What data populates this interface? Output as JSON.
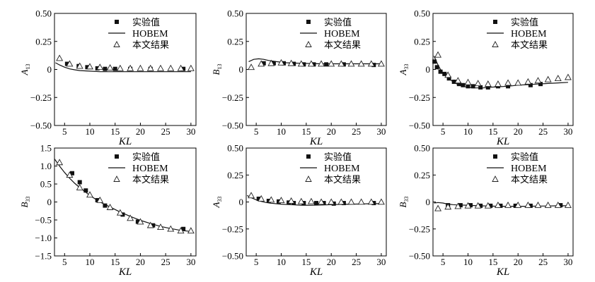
{
  "legend": {
    "experiment": "实验值",
    "hobem": "HOBEM",
    "present": "本文结果"
  },
  "chart_data": [
    {
      "type": "scatter",
      "ylabel": "A",
      "ylabel_sub": "13",
      "xlabel": "KL",
      "xlim": [
        3,
        31
      ],
      "ylim": [
        -0.5,
        0.5
      ],
      "xticks": [
        5,
        10,
        15,
        20,
        25,
        30
      ],
      "yticks": [
        -0.5,
        -0.25,
        0,
        0.25,
        0.5
      ],
      "yticklabels": [
        "−0.50",
        "−0.25",
        "0",
        "0.25",
        "0.50"
      ],
      "legend_position": "top-right",
      "series": [
        {
          "name": "实验值",
          "marker": "square",
          "x": [
            5.5,
            7.8,
            9.5,
            11.5,
            13,
            15,
            18,
            22,
            28.5
          ],
          "y": [
            0.05,
            0.03,
            0.02,
            0.01,
            0.005,
            0.005,
            0.005,
            0.005,
            0.005
          ]
        },
        {
          "name": "HOBEM",
          "marker": "line",
          "x": [
            3.2,
            4,
            5,
            6,
            7,
            8,
            10,
            12,
            15,
            20,
            25,
            30
          ],
          "y": [
            0.06,
            0.04,
            0.02,
            0.005,
            -0.003,
            -0.01,
            -0.015,
            -0.02,
            -0.02,
            -0.02,
            -0.02,
            -0.02
          ]
        },
        {
          "name": "本文结果",
          "marker": "triangle",
          "x": [
            4,
            6,
            8,
            10,
            12,
            14,
            16,
            18,
            20,
            22,
            24,
            26,
            28,
            30
          ],
          "y": [
            0.1,
            0.05,
            0.03,
            0.025,
            0.02,
            0.015,
            0.01,
            0.01,
            0.01,
            0.01,
            0.01,
            0.01,
            0.01,
            0.01
          ]
        }
      ]
    },
    {
      "type": "scatter",
      "ylabel": "B",
      "ylabel_sub": "13",
      "xlabel": "KL",
      "xlim": [
        3,
        31
      ],
      "ylim": [
        -0.5,
        0.5
      ],
      "xticks": [
        5,
        10,
        15,
        20,
        25,
        30
      ],
      "yticks": [
        -0.5,
        -0.25,
        0,
        0.25,
        0.5
      ],
      "yticklabels": [
        "−0.50",
        "−0.25",
        "0",
        "0.25",
        "0.50"
      ],
      "legend_position": "top-right",
      "series": [
        {
          "name": "实验值",
          "marker": "square",
          "x": [
            6.5,
            8.5,
            10.5,
            12.5,
            14.5,
            16.5,
            19,
            22.5,
            28.5
          ],
          "y": [
            0.055,
            0.055,
            0.055,
            0.05,
            0.045,
            0.045,
            0.045,
            0.045,
            0.04
          ]
        },
        {
          "name": "HOBEM",
          "marker": "line",
          "x": [
            3.5,
            4.5,
            5.5,
            6.5,
            7.5,
            9,
            11,
            14,
            18,
            22,
            26,
            30
          ],
          "y": [
            0.07,
            0.09,
            0.095,
            0.09,
            0.08,
            0.07,
            0.06,
            0.055,
            0.05,
            0.05,
            0.05,
            0.05
          ]
        },
        {
          "name": "本文结果",
          "marker": "triangle",
          "x": [
            4,
            6,
            8,
            10,
            12,
            14,
            16,
            18,
            20,
            22,
            24,
            26,
            28,
            30
          ],
          "y": [
            0.02,
            0.05,
            0.055,
            0.06,
            0.055,
            0.05,
            0.05,
            0.05,
            0.05,
            0.05,
            0.05,
            0.05,
            0.05,
            0.05
          ]
        }
      ]
    },
    {
      "type": "scatter",
      "ylabel": "A",
      "ylabel_sub": "33",
      "xlabel": "KL",
      "xlim": [
        3,
        31
      ],
      "ylim": [
        -0.5,
        0.5
      ],
      "xticks": [
        5,
        10,
        15,
        20,
        25,
        30
      ],
      "yticks": [
        -0.5,
        -0.25,
        0,
        0.25,
        0.5
      ],
      "yticklabels": [
        "−0.50",
        "−0.25",
        "0",
        "0.25",
        "0.50"
      ],
      "legend_position": "top-right",
      "series": [
        {
          "name": "实验值",
          "marker": "square",
          "x": [
            3.3,
            3.8,
            4.5,
            5.3,
            6.2,
            7.2,
            8.2,
            9,
            10,
            11,
            12.5,
            14,
            16,
            18,
            22.5,
            24.5
          ],
          "y": [
            0.07,
            0.02,
            -0.02,
            -0.04,
            -0.08,
            -0.11,
            -0.13,
            -0.14,
            -0.15,
            -0.15,
            -0.16,
            -0.16,
            -0.15,
            -0.15,
            -0.14,
            -0.13
          ]
        },
        {
          "name": "HOBEM",
          "marker": "line",
          "x": [
            3.2,
            3.6,
            4,
            4.5,
            5,
            5.5,
            6,
            7,
            8,
            9,
            10,
            11,
            12,
            13,
            14,
            16,
            18,
            20,
            22,
            24,
            26,
            28,
            30
          ],
          "y": [
            0.12,
            0.08,
            0.04,
            0.0,
            -0.03,
            -0.055,
            -0.075,
            -0.11,
            -0.135,
            -0.15,
            -0.16,
            -0.165,
            -0.165,
            -0.165,
            -0.16,
            -0.155,
            -0.15,
            -0.14,
            -0.135,
            -0.13,
            -0.125,
            -0.12,
            -0.115
          ]
        },
        {
          "name": "本文结果",
          "marker": "triangle",
          "x": [
            4,
            6,
            8,
            10,
            12,
            14,
            16,
            18,
            20,
            22,
            24,
            26,
            28,
            30
          ],
          "y": [
            0.13,
            -0.05,
            -0.1,
            -0.115,
            -0.125,
            -0.13,
            -0.13,
            -0.12,
            -0.12,
            -0.11,
            -0.1,
            -0.09,
            -0.08,
            -0.07
          ]
        }
      ]
    },
    {
      "type": "scatter",
      "ylabel": "B",
      "ylabel_sub": "33",
      "xlabel": "KL",
      "xlim": [
        3,
        31
      ],
      "ylim": [
        -1.5,
        1.5
      ],
      "xticks": [
        5,
        10,
        15,
        20,
        25,
        30
      ],
      "yticks": [
        -1.5,
        -1.0,
        -0.5,
        0,
        0.5,
        1.0,
        1.5
      ],
      "yticklabels": [
        "−1.5",
        "−1.0",
        "−0.5",
        "0",
        "0.5",
        "1.0",
        "1.5"
      ],
      "legend_position": "top-right",
      "series": [
        {
          "name": "实验值",
          "marker": "square",
          "x": [
            6.5,
            8,
            9.2,
            11.5,
            13,
            16.5,
            19.5,
            22.5,
            28.5
          ],
          "y": [
            0.8,
            0.55,
            0.32,
            0.05,
            -0.1,
            -0.35,
            -0.55,
            -0.65,
            -0.75
          ]
        },
        {
          "name": "HOBEM",
          "marker": "line",
          "x": [
            3,
            4,
            5,
            6,
            7,
            8,
            9,
            10,
            11,
            12,
            13,
            14,
            15,
            16,
            17,
            18,
            20,
            22,
            24,
            26,
            28,
            30
          ],
          "y": [
            1.2,
            1.0,
            0.82,
            0.66,
            0.52,
            0.4,
            0.29,
            0.18,
            0.09,
            0.0,
            -0.07,
            -0.14,
            -0.21,
            -0.28,
            -0.34,
            -0.4,
            -0.51,
            -0.6,
            -0.68,
            -0.74,
            -0.79,
            -0.82
          ]
        },
        {
          "name": "本文结果",
          "marker": "triangle",
          "x": [
            4,
            6,
            8,
            10,
            12,
            14,
            16,
            18,
            20,
            22,
            24,
            26,
            28,
            30
          ],
          "y": [
            1.1,
            0.75,
            0.4,
            0.2,
            0.05,
            -0.15,
            -0.3,
            -0.45,
            -0.55,
            -0.65,
            -0.7,
            -0.75,
            -0.8,
            -0.8
          ]
        }
      ]
    },
    {
      "type": "scatter",
      "ylabel": "A",
      "ylabel_sub": "33",
      "xlabel": "KL",
      "xlim": [
        3,
        31
      ],
      "ylim": [
        -0.5,
        0.5
      ],
      "xticks": [
        5,
        10,
        15,
        20,
        25,
        30
      ],
      "yticks": [
        -0.5,
        -0.25,
        0,
        0.25,
        0.5
      ],
      "yticklabels": [
        "−0.50",
        "−0.25",
        "0",
        "0.25",
        "0.50"
      ],
      "legend_position": "top-right",
      "series": [
        {
          "name": "实验值",
          "marker": "square",
          "x": [
            5.5,
            7.5,
            9.5,
            11.5,
            12.5,
            14.5,
            17,
            18.5,
            20.5,
            22.5,
            28.5
          ],
          "y": [
            0.03,
            0.01,
            0.005,
            -0.005,
            -0.01,
            -0.01,
            -0.01,
            -0.01,
            -0.015,
            -0.01,
            -0.01
          ]
        },
        {
          "name": "HOBEM",
          "marker": "line",
          "x": [
            3.2,
            4,
            5,
            6,
            7,
            8,
            10,
            12,
            14,
            16,
            18,
            20,
            22,
            24,
            26,
            28,
            30
          ],
          "y": [
            0.06,
            0.04,
            0.02,
            0.005,
            -0.005,
            -0.012,
            -0.02,
            -0.025,
            -0.03,
            -0.03,
            -0.028,
            -0.025,
            -0.022,
            -0.02,
            -0.018,
            -0.016,
            -0.015
          ]
        },
        {
          "name": "本文结果",
          "marker": "triangle",
          "x": [
            4,
            6,
            8,
            10,
            12,
            14,
            16,
            18,
            20,
            22,
            24,
            26,
            28,
            30
          ],
          "y": [
            0.06,
            0.03,
            0.02,
            0.015,
            0.01,
            0.005,
            0.005,
            0.0,
            0.0,
            0.0,
            0.0,
            0.0,
            0.0,
            0.0
          ]
        }
      ]
    },
    {
      "type": "scatter",
      "ylabel": "B",
      "ylabel_sub": "33",
      "xlabel": "KL",
      "xlim": [
        3,
        31
      ],
      "ylim": [
        -0.5,
        0.5
      ],
      "xticks": [
        5,
        10,
        15,
        20,
        25,
        30
      ],
      "yticks": [
        -0.5,
        -0.25,
        0,
        0.25,
        0.5
      ],
      "yticklabels": [
        "−0.50",
        "−0.25",
        "0",
        "0.25",
        "0.50"
      ],
      "legend_position": "top-right",
      "series": [
        {
          "name": "实验值",
          "marker": "square",
          "x": [
            6,
            8.5,
            10.5,
            12.5,
            14.5,
            16.5,
            19.5,
            22.5,
            28.5
          ],
          "y": [
            -0.03,
            -0.03,
            -0.03,
            -0.035,
            -0.035,
            -0.035,
            -0.035,
            -0.035,
            -0.03
          ]
        },
        {
          "name": "HOBEM",
          "marker": "line",
          "x": [
            3.2,
            4,
            5,
            6,
            7,
            8,
            10,
            12,
            14,
            16,
            18,
            20,
            22,
            24,
            26,
            28,
            30
          ],
          "y": [
            -0.01,
            -0.005,
            -0.01,
            -0.02,
            -0.025,
            -0.028,
            -0.03,
            -0.035,
            -0.037,
            -0.04,
            -0.04,
            -0.04,
            -0.04,
            -0.038,
            -0.037,
            -0.035,
            -0.035
          ]
        },
        {
          "name": "本文结果",
          "marker": "triangle",
          "x": [
            4,
            6,
            8,
            10,
            12,
            14,
            16,
            18,
            20,
            22,
            24,
            26,
            28,
            30
          ],
          "y": [
            -0.06,
            -0.045,
            -0.04,
            -0.035,
            -0.035,
            -0.035,
            -0.03,
            -0.03,
            -0.03,
            -0.03,
            -0.03,
            -0.03,
            -0.03,
            -0.03
          ]
        }
      ]
    }
  ]
}
